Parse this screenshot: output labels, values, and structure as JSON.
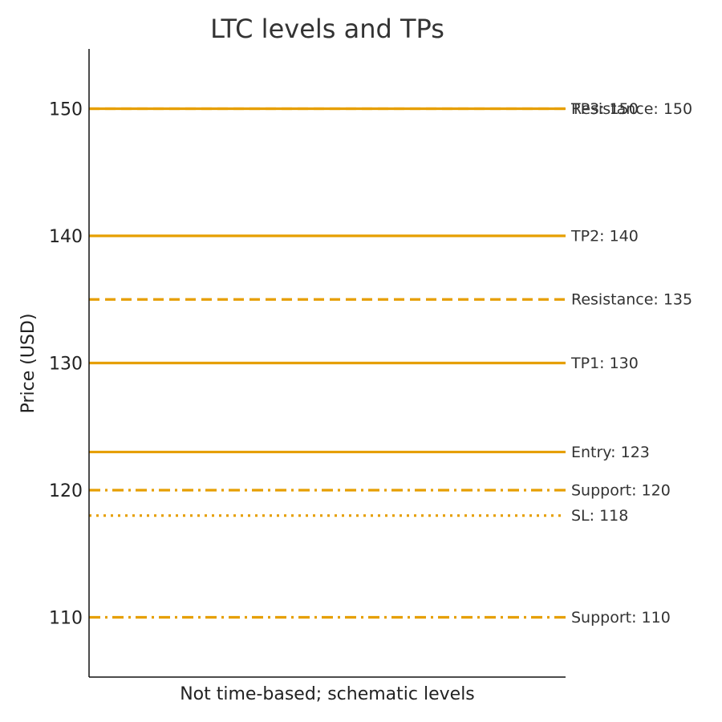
{
  "chart_data": {
    "type": "line",
    "title": "LTC levels and TPs",
    "xlabel": "Not time-based; schematic levels",
    "ylabel": "Price (USD)",
    "ylim": [
      105.3,
      154.7
    ],
    "yticks": [
      "110",
      "120",
      "130",
      "140",
      "150"
    ],
    "grid": false,
    "line_color": "#E69F00",
    "levels": [
      {
        "label": "TP3: 150",
        "value": 150,
        "style": "solid"
      },
      {
        "label": "TP2: 140",
        "value": 140,
        "style": "solid"
      },
      {
        "label": "TP1: 130",
        "value": 130,
        "style": "solid"
      },
      {
        "label": "Entry: 123",
        "value": 123,
        "style": "solid"
      },
      {
        "label": "SL: 118",
        "value": 118,
        "style": "dotted"
      },
      {
        "label": "Resistance: 135",
        "value": 135,
        "style": "dashed"
      },
      {
        "label": "Resistance: 150",
        "value": 150,
        "style": "dashed"
      },
      {
        "label": "Support: 120",
        "value": 120,
        "style": "dashdot"
      },
      {
        "label": "Support: 110",
        "value": 110,
        "style": "dashdot"
      }
    ]
  }
}
